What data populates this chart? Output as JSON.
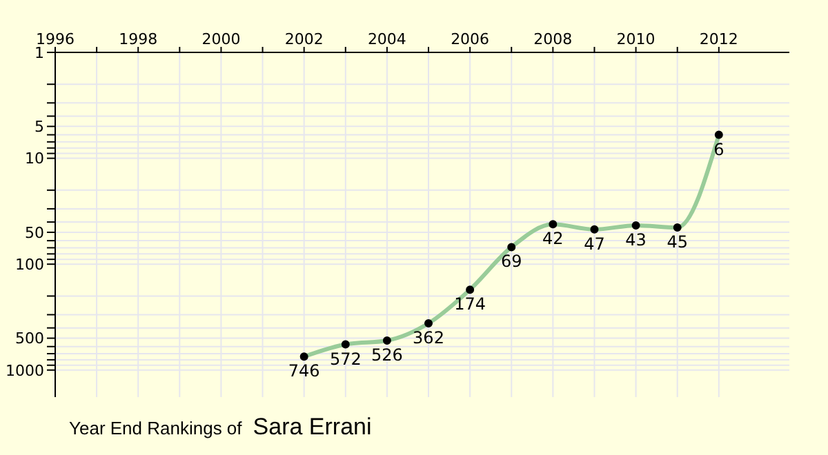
{
  "chart_data": {
    "type": "line",
    "title": "Year End Rankings of",
    "subtitle": "Sara Errani",
    "x": [
      2002,
      2003,
      2004,
      2005,
      2006,
      2007,
      2008,
      2009,
      2010,
      2011,
      2012
    ],
    "series": [
      {
        "color": "#99cc99",
        "values": [
          746,
          572,
          526,
          362,
          174,
          69,
          42,
          47,
          43,
          45,
          6
        ]
      }
    ],
    "xlim": [
      1996,
      2013.7
    ],
    "xticks": [
      1996,
      {
        "value": 1997,
        "label": null
      },
      1998,
      {
        "value": 1999,
        "label": null
      },
      2000,
      {
        "value": 2001,
        "label": null
      },
      2002,
      {
        "value": 2003,
        "label": null
      },
      2004,
      {
        "value": 2005,
        "label": null
      },
      2006,
      {
        "value": 2007,
        "label": null
      },
      2008,
      {
        "value": 2009,
        "label": null
      },
      2010,
      {
        "value": 2011,
        "label": null
      },
      2012
    ],
    "ylim": [
      1800,
      1
    ],
    "yticks": [
      1,
      {
        "value": 2,
        "label": null
      },
      {
        "value": 3,
        "label": null
      },
      {
        "value": 4,
        "label": null
      },
      5,
      {
        "value": 6,
        "label": null
      },
      {
        "value": 7,
        "label": null
      },
      {
        "value": 8,
        "label": null
      },
      {
        "value": 9,
        "label": null
      },
      10,
      {
        "value": 20,
        "label": null
      },
      {
        "value": 30,
        "label": null
      },
      {
        "value": 40,
        "label": null
      },
      50,
      {
        "value": 60,
        "label": null
      },
      {
        "value": 70,
        "label": null
      },
      {
        "value": 80,
        "label": null
      },
      {
        "value": 90,
        "label": null
      },
      100,
      {
        "value": 200,
        "label": null
      },
      {
        "value": 300,
        "label": null
      },
      {
        "value": 400,
        "label": null
      },
      500,
      {
        "value": 600,
        "label": null
      },
      {
        "value": 700,
        "label": null
      },
      {
        "value": 800,
        "label": null
      },
      {
        "value": 900,
        "label": null
      },
      1000
    ],
    "log": "y",
    "grid": true,
    "marker": "circle",
    "data_labels": true,
    "legend": false,
    "line_style": "solid"
  }
}
